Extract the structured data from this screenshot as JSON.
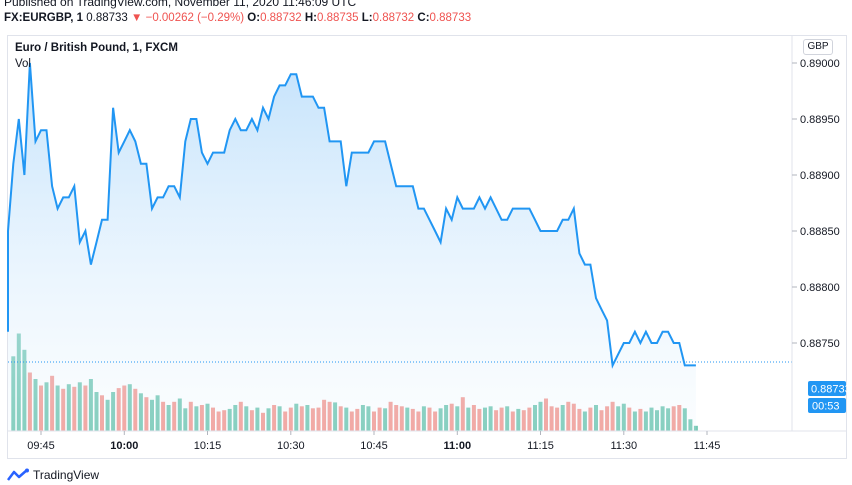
{
  "header": {
    "published": "Published on TradingView.com, November 11, 2020 11:46:09 UTC",
    "symbol": "FX:EURGBP, 1",
    "last": "0.88733",
    "change_arrow": "▼",
    "change": "−0.00262 (−0.29%)",
    "open_label": "O:",
    "open": "0.88732",
    "high_label": "H:",
    "high": "0.88735",
    "low_label": "L:",
    "low": "0.88732",
    "close_label": "C:",
    "close": "0.88733"
  },
  "legend": {
    "title": "Euro / British Pound, 1, FXCM",
    "volume_label": "Vol"
  },
  "currency_button": "GBP",
  "price_tag": "0.88733",
  "countdown_tag": "00:53",
  "footer": {
    "brand": "TradingView"
  },
  "colors": {
    "line": "#2196f3",
    "area_top": "#bbdefb",
    "volume_up": "#5fbfa8",
    "volume_down": "#f28b82",
    "tag_bg": "#2196f3"
  },
  "chart_data": {
    "type": "area",
    "title": "Euro / British Pound, 1, FXCM",
    "interval_minutes": 1,
    "ylim": [
      0.8872,
      0.8901
    ],
    "y_ticks": [
      0.8875,
      0.888,
      0.8885,
      0.889,
      0.8895,
      0.89
    ],
    "y_tick_labels": [
      "0.88750",
      "0.88800",
      "0.88850",
      "0.88900",
      "0.88950",
      "0.89000"
    ],
    "x_tick_labels": [
      "09:45",
      "10:00",
      "10:15",
      "10:30",
      "10:45",
      "11:00",
      "11:15",
      "11:30",
      "11:45"
    ],
    "start_time": "09:38",
    "series": [
      {
        "values": [
          0.8876,
          0.8885,
          0.8891,
          0.8895,
          0.889,
          0.89,
          0.8893,
          0.8894,
          0.8894,
          0.8889,
          0.8887,
          0.8888,
          0.8888,
          0.8889,
          0.8884,
          0.8885,
          0.8882,
          0.8884,
          0.8886,
          0.8886,
          0.8896,
          0.8892,
          0.8893,
          0.8894,
          0.8893,
          0.8891,
          0.8891,
          0.8887,
          0.8888,
          0.8888,
          0.8889,
          0.8889,
          0.8888,
          0.8893,
          0.8895,
          0.8895,
          0.8892,
          0.8891,
          0.8892,
          0.8892,
          0.8892,
          0.8894,
          0.8895,
          0.8894,
          0.8894,
          0.8895,
          0.8894,
          0.8896,
          0.8895,
          0.8897,
          0.8898,
          0.8898,
          0.8899,
          0.8899,
          0.8897,
          0.8897,
          0.8897,
          0.8896,
          0.8896,
          0.8893,
          0.8893,
          0.8893,
          0.8889,
          0.8892,
          0.8892,
          0.8892,
          0.8892,
          0.8893,
          0.8893,
          0.8893,
          0.8891,
          0.8889,
          0.8889,
          0.8889,
          0.8889,
          0.8887,
          0.8887,
          0.8886,
          0.8885,
          0.8884,
          0.8887,
          0.8886,
          0.8888,
          0.8887,
          0.8887,
          0.8887,
          0.8888,
          0.8887,
          0.8888,
          0.8887,
          0.8886,
          0.8886,
          0.8887,
          0.8887,
          0.8887,
          0.8887,
          0.8886,
          0.8885,
          0.8885,
          0.8885,
          0.8885,
          0.8886,
          0.8886,
          0.8887,
          0.8883,
          0.8882,
          0.8882,
          0.8879,
          0.8878,
          0.8877,
          0.8873,
          0.8874,
          0.8875,
          0.8875,
          0.8876,
          0.8875,
          0.8876,
          0.8875,
          0.8875,
          0.8876,
          0.8876,
          0.8875,
          0.8875,
          0.8873,
          0.8873,
          0.8873
        ]
      }
    ],
    "volume": {
      "values": [
        110,
        100,
        115,
        150,
        125,
        90,
        80,
        70,
        75,
        85,
        70,
        65,
        72,
        68,
        75,
        70,
        80,
        60,
        55,
        48,
        60,
        66,
        70,
        72,
        65,
        58,
        52,
        48,
        55,
        45,
        40,
        45,
        50,
        35,
        45,
        38,
        40,
        42,
        36,
        30,
        32,
        34,
        40,
        45,
        38,
        32,
        36,
        28,
        35,
        40,
        38,
        30,
        36,
        42,
        38,
        40,
        35,
        36,
        48,
        45,
        44,
        38,
        36,
        30,
        34,
        40,
        38,
        30,
        36,
        35,
        45,
        40,
        38,
        36,
        34,
        30,
        38,
        36,
        30,
        35,
        40,
        42,
        38,
        52,
        36,
        40,
        34,
        36,
        38,
        32,
        36,
        38,
        30,
        34,
        32,
        36,
        40,
        45,
        50,
        38,
        36,
        40,
        45,
        42,
        34,
        30,
        36,
        40,
        32,
        38,
        45,
        38,
        42,
        36,
        30,
        34,
        30,
        36,
        32,
        38,
        35,
        38,
        40,
        35,
        18,
        8
      ],
      "up": [
        1,
        1,
        1,
        1,
        1,
        0,
        1,
        0,
        1,
        0,
        1,
        0,
        1,
        0,
        1,
        0,
        1,
        1,
        0,
        1,
        1,
        0,
        0,
        1,
        0,
        1,
        0,
        1,
        1,
        0,
        1,
        0,
        1,
        1,
        0,
        1,
        0,
        1,
        0,
        0,
        0,
        1,
        1,
        0,
        1,
        0,
        1,
        0,
        1,
        0,
        1,
        0,
        0,
        1,
        0,
        1,
        0,
        0,
        0,
        0,
        1,
        0,
        1,
        0,
        0,
        1,
        1,
        0,
        0,
        1,
        0,
        0,
        0,
        1,
        0,
        0,
        1,
        0,
        0,
        1,
        1,
        0,
        1,
        0,
        1,
        0,
        0,
        1,
        1,
        0,
        0,
        1,
        0,
        1,
        0,
        0,
        1,
        1,
        0,
        0,
        0,
        1,
        0,
        0,
        0,
        1,
        0,
        1,
        0,
        0,
        0,
        1,
        1,
        0,
        1,
        0,
        1,
        1,
        1,
        1,
        1,
        0,
        0,
        1,
        1,
        1
      ]
    },
    "last_price": 0.88733,
    "grid": false
  }
}
